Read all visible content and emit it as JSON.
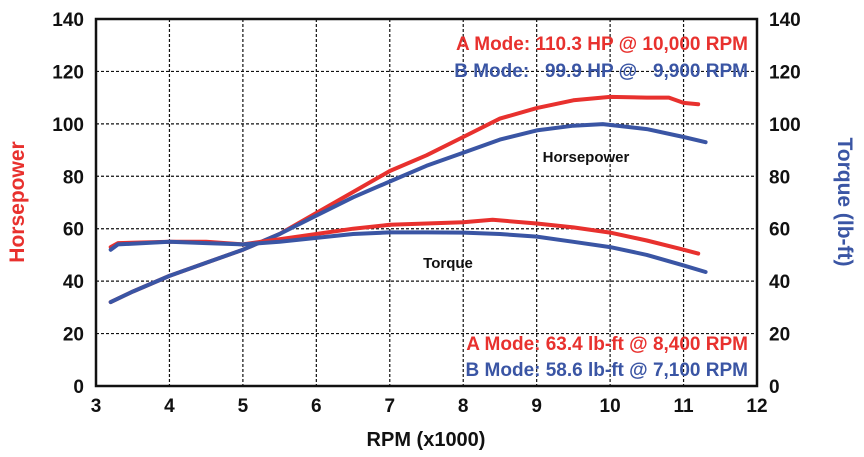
{
  "chart_data": {
    "type": "line",
    "title": "",
    "xlabel": "RPM (x1000)",
    "ylabel_left": "Horsepower",
    "ylabel_right": "Torque (lb-ft)",
    "xlim": [
      3,
      12
    ],
    "ylim": [
      0,
      140
    ],
    "grid": true,
    "x_ticks": [
      "3",
      "4",
      "5",
      "6",
      "7",
      "8",
      "9",
      "10",
      "11",
      "12"
    ],
    "y_ticks": [
      "0",
      "20",
      "40",
      "60",
      "80",
      "100",
      "120",
      "140"
    ],
    "colors": {
      "A": "#e8312e",
      "B": "#3a55a4",
      "left_label": "#e8312e",
      "right_label": "#3a55a4"
    },
    "annotations": {
      "hp_a": "A Mode: 110.3 HP @ 10,000 RPM",
      "hp_b": "B Mode:   99.9 HP @   9,900 RPM",
      "tq_a": "A Mode: 63.4 lb-ft @ 8,400 RPM",
      "tq_b": "B Mode: 58.6 lb-ft @ 7,100 RPM",
      "hp_curve_label": "Horsepower",
      "tq_curve_label": "Torque"
    },
    "series": [
      {
        "key": "A-hp",
        "color": "#e8312e",
        "points": [
          [
            3.2,
            32
          ],
          [
            3.5,
            36
          ],
          [
            4,
            42
          ],
          [
            4.5,
            47
          ],
          [
            5,
            52
          ],
          [
            5.5,
            58
          ],
          [
            6,
            66
          ],
          [
            6.5,
            74
          ],
          [
            7,
            82
          ],
          [
            7.5,
            88
          ],
          [
            8,
            95
          ],
          [
            8.5,
            102
          ],
          [
            9,
            106
          ],
          [
            9.5,
            109
          ],
          [
            10,
            110.3
          ],
          [
            10.5,
            110
          ],
          [
            10.8,
            110
          ],
          [
            11,
            108
          ],
          [
            11.2,
            107.5
          ]
        ]
      },
      {
        "key": "B-hp",
        "color": "#3a55a4",
        "points": [
          [
            3.2,
            32
          ],
          [
            3.5,
            36
          ],
          [
            4,
            42
          ],
          [
            4.5,
            47
          ],
          [
            5,
            52
          ],
          [
            5.5,
            58
          ],
          [
            6,
            65
          ],
          [
            6.5,
            72
          ],
          [
            7,
            78
          ],
          [
            7.5,
            84
          ],
          [
            8,
            89
          ],
          [
            8.5,
            94
          ],
          [
            9,
            97.5
          ],
          [
            9.5,
            99.3
          ],
          [
            9.9,
            99.9
          ],
          [
            10.5,
            98
          ],
          [
            11,
            95
          ],
          [
            11.3,
            93
          ]
        ]
      },
      {
        "key": "A-tq",
        "color": "#e8312e",
        "points": [
          [
            3.2,
            53
          ],
          [
            3.3,
            54.5
          ],
          [
            4,
            55
          ],
          [
            4.5,
            55
          ],
          [
            5,
            54
          ],
          [
            5.5,
            56
          ],
          [
            6,
            58
          ],
          [
            6.5,
            60
          ],
          [
            7,
            61.5
          ],
          [
            7.5,
            62
          ],
          [
            8,
            62.5
          ],
          [
            8.4,
            63.4
          ],
          [
            9,
            62
          ],
          [
            9.5,
            60.5
          ],
          [
            10,
            58.5
          ],
          [
            10.5,
            55.5
          ],
          [
            11,
            52
          ],
          [
            11.2,
            50.5
          ]
        ]
      },
      {
        "key": "B-tq",
        "color": "#3a55a4",
        "points": [
          [
            3.2,
            52
          ],
          [
            3.3,
            54
          ],
          [
            4,
            55
          ],
          [
            4.5,
            54.5
          ],
          [
            5,
            54
          ],
          [
            5.5,
            55
          ],
          [
            6,
            56.5
          ],
          [
            6.5,
            58
          ],
          [
            7,
            58.6
          ],
          [
            7.5,
            58.6
          ],
          [
            8,
            58.5
          ],
          [
            8.5,
            58
          ],
          [
            9,
            57
          ],
          [
            9.5,
            55
          ],
          [
            10,
            53
          ],
          [
            10.5,
            50
          ],
          [
            11,
            46
          ],
          [
            11.3,
            43.5
          ]
        ]
      }
    ]
  }
}
